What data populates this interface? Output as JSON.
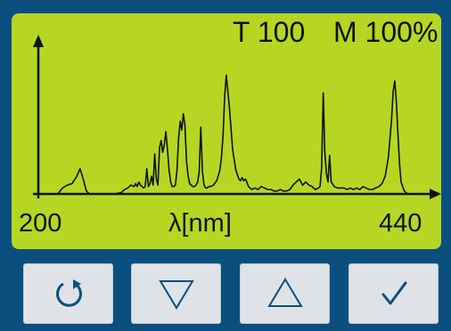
{
  "readouts": {
    "temperature": "T 100",
    "mode": "M 100%"
  },
  "axis": {
    "xmin_label": "200",
    "xmax_label": "440",
    "unit_label": "λ[nm]"
  },
  "colors": {
    "frame": "#0b4f7f",
    "screen": "#b7d623",
    "trace": "#111111",
    "button_face": "#dfe3e7",
    "button_icon": "#0b4f7f"
  },
  "buttons": [
    {
      "name": "reset",
      "icon": "refresh-icon"
    },
    {
      "name": "down",
      "icon": "triangle-down-icon"
    },
    {
      "name": "up",
      "icon": "triangle-up-icon"
    },
    {
      "name": "confirm",
      "icon": "checkmark-icon"
    }
  ],
  "chart_data": {
    "type": "line",
    "xlabel": "λ[nm]",
    "xlim": [
      200,
      440
    ],
    "x_ticks": [
      "200",
      "440"
    ],
    "series": [
      {
        "x": [
          200,
          205,
          210,
          213,
          216,
          219,
          222,
          224,
          226,
          228,
          230,
          231,
          233,
          236,
          240,
          246,
          250,
          252,
          254,
          256,
          258,
          259,
          260,
          261,
          262,
          263,
          264,
          265,
          266,
          267,
          268,
          269,
          270,
          271,
          272,
          273,
          274,
          275,
          276,
          277,
          278,
          279,
          280,
          281,
          282,
          283,
          284,
          285,
          286,
          287,
          288,
          289,
          290,
          291,
          292,
          293,
          294,
          295,
          296,
          297,
          298,
          299,
          300,
          301,
          302,
          303,
          304,
          305,
          306,
          308,
          310,
          312,
          313,
          314,
          315,
          316,
          318,
          320,
          322,
          324,
          325,
          326,
          327,
          328,
          329,
          330,
          332,
          334,
          336,
          338,
          340,
          342,
          344,
          346,
          348,
          350,
          352,
          354,
          356,
          358,
          360,
          362,
          364,
          366,
          368,
          370,
          372,
          374,
          375,
          376,
          377,
          378,
          379,
          380,
          381,
          382,
          384,
          386,
          388,
          390,
          392,
          394,
          396,
          398,
          400,
          402,
          404,
          406,
          408,
          410,
          412,
          414,
          416,
          418,
          420,
          421,
          422,
          423,
          424,
          425,
          426,
          428,
          430
        ],
        "y": [
          0.0,
          0.0,
          0.0,
          0.04,
          0.06,
          0.07,
          0.12,
          0.17,
          0.1,
          0.02,
          0.0,
          0.0,
          0.0,
          0.0,
          0.0,
          0.0,
          0.01,
          0.03,
          0.04,
          0.06,
          0.05,
          0.07,
          0.05,
          0.08,
          0.06,
          0.05,
          0.04,
          0.05,
          0.17,
          0.05,
          0.07,
          0.12,
          0.06,
          0.27,
          0.1,
          0.06,
          0.31,
          0.36,
          0.28,
          0.33,
          0.42,
          0.3,
          0.16,
          0.08,
          0.05,
          0.05,
          0.06,
          0.16,
          0.38,
          0.49,
          0.43,
          0.54,
          0.46,
          0.22,
          0.12,
          0.07,
          0.06,
          0.05,
          0.05,
          0.06,
          0.08,
          0.15,
          0.45,
          0.15,
          0.06,
          0.04,
          0.04,
          0.05,
          0.05,
          0.06,
          0.09,
          0.16,
          0.25,
          0.4,
          0.66,
          0.8,
          0.58,
          0.3,
          0.16,
          0.1,
          0.09,
          0.11,
          0.09,
          0.1,
          0.08,
          0.05,
          0.03,
          0.04,
          0.03,
          0.05,
          0.04,
          0.03,
          0.03,
          0.02,
          0.02,
          0.03,
          0.02,
          0.02,
          0.03,
          0.06,
          0.08,
          0.1,
          0.06,
          0.08,
          0.06,
          0.05,
          0.03,
          0.04,
          0.05,
          0.18,
          0.68,
          0.28,
          0.14,
          0.08,
          0.26,
          0.08,
          0.05,
          0.04,
          0.04,
          0.04,
          0.03,
          0.04,
          0.03,
          0.04,
          0.03,
          0.05,
          0.04,
          0.03,
          0.03,
          0.04,
          0.05,
          0.07,
          0.12,
          0.25,
          0.5,
          0.69,
          0.76,
          0.62,
          0.4,
          0.2,
          0.08,
          0.02,
          0.0
        ]
      }
    ]
  }
}
